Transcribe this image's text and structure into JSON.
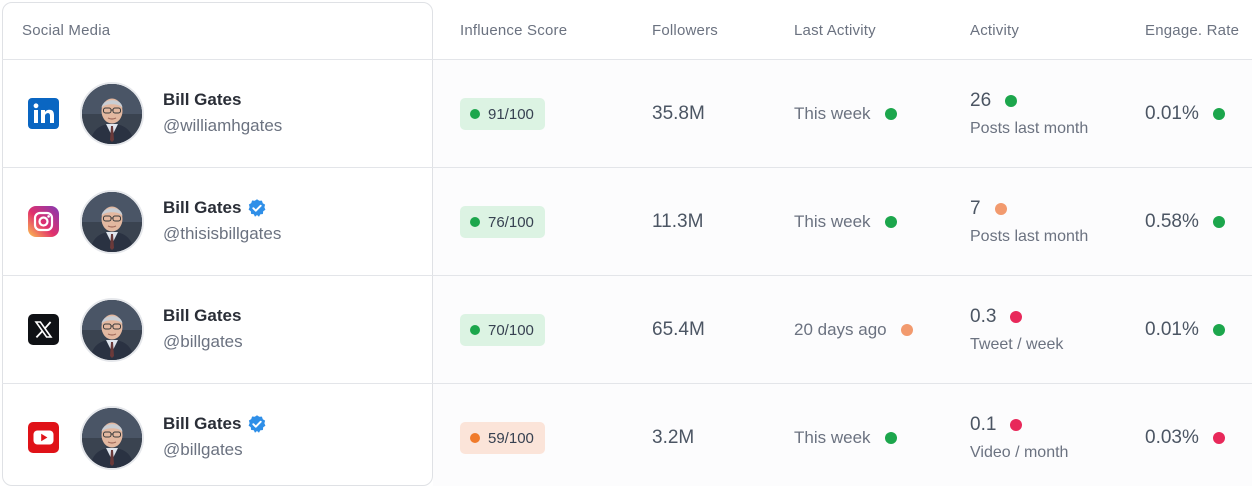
{
  "colors": {
    "green": "#1ca64c",
    "orange": "#f29a6e",
    "red": "#e8285a",
    "pill_green_bg": "#dcf3e3",
    "pill_orange_bg": "#fbe4d9",
    "pill_orange_dot": "#f07a2a"
  },
  "headers": {
    "social_media": "Social Media",
    "influence_score": "Influence Score",
    "followers": "Followers",
    "last_activity": "Last Activity",
    "activity": "Activity",
    "engage_rate": "Engage. Rate"
  },
  "rows": [
    {
      "platform_icon": "linkedin-icon",
      "name": "Bill Gates",
      "verified": false,
      "handle": "@williamhgates",
      "score": "91/100",
      "score_status": "green",
      "followers": "35.8M",
      "last_activity": "This week",
      "last_activity_status": "green",
      "activity_value": "26",
      "activity_status": "green",
      "activity_unit": "Posts last month",
      "engage_rate": "0.01%",
      "engage_status": "green"
    },
    {
      "platform_icon": "instagram-icon",
      "name": "Bill Gates",
      "verified": true,
      "handle": "@thisisbillgates",
      "score": "76/100",
      "score_status": "green",
      "followers": "11.3M",
      "last_activity": "This week",
      "last_activity_status": "green",
      "activity_value": "7",
      "activity_status": "orange",
      "activity_unit": "Posts last month",
      "engage_rate": "0.58%",
      "engage_status": "green"
    },
    {
      "platform_icon": "x-icon",
      "name": "Bill Gates",
      "verified": false,
      "handle": "@billgates",
      "score": "70/100",
      "score_status": "green",
      "followers": "65.4M",
      "last_activity": "20 days ago",
      "last_activity_status": "orange",
      "activity_value": "0.3",
      "activity_status": "red",
      "activity_unit": "Tweet / week",
      "engage_rate": "0.01%",
      "engage_status": "green"
    },
    {
      "platform_icon": "youtube-icon",
      "name": "Bill Gates",
      "verified": true,
      "handle": "@billgates",
      "score": "59/100",
      "score_status": "orange",
      "followers": "3.2M",
      "last_activity": "This week",
      "last_activity_status": "green",
      "activity_value": "0.1",
      "activity_status": "red",
      "activity_unit": "Video / month",
      "engage_rate": "0.03%",
      "engage_status": "red"
    }
  ]
}
